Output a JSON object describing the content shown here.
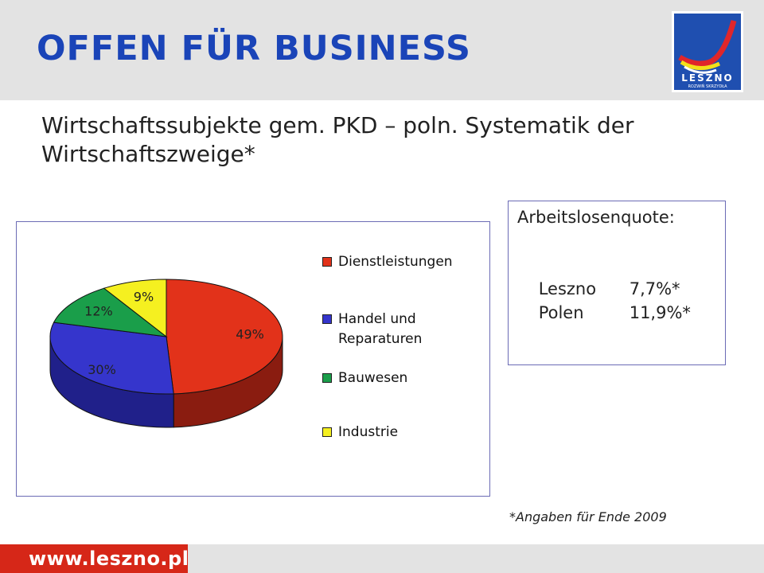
{
  "header": {
    "title": "OFFEN FÜR BUSINESS"
  },
  "logo": {
    "name": "LESZNO",
    "tagline": "ROZWIŃ SKRZYDŁA"
  },
  "subtitle": "Wirtschaftssubjekte gem. PKD – poln. Systematik der Wirtschaftszweige*",
  "chart_data": {
    "type": "pie",
    "title": "",
    "labels": [
      "Dienstleistungen",
      "Handel und Reparaturen",
      "Bauwesen",
      "Industrie"
    ],
    "legend_lines": [
      [
        "Dienstleistungen"
      ],
      [
        "Handel und",
        "Reparaturen"
      ],
      [
        "Bauwesen"
      ],
      [
        "Industrie"
      ]
    ],
    "values": [
      49,
      30,
      12,
      9
    ],
    "value_labels": [
      "49%",
      "30%",
      "12%",
      "9%"
    ],
    "colors": [
      "#e2321a",
      "#3535cc",
      "#1a9e4a",
      "#f5f020"
    ],
    "side_colors": [
      "#8a1c10",
      "#20208a",
      "#0f6630",
      "#a8a414"
    ],
    "legend_position": "right",
    "style": "3d"
  },
  "info_box": {
    "title": "Arbeitslosenquote:",
    "rows": [
      {
        "city": "Leszno",
        "value": "7,7%*"
      },
      {
        "city": "Polen",
        "value": "11,9%*"
      }
    ]
  },
  "footnote": "*Angaben für Ende 2009",
  "footer": {
    "url": "www.leszno.pl"
  }
}
